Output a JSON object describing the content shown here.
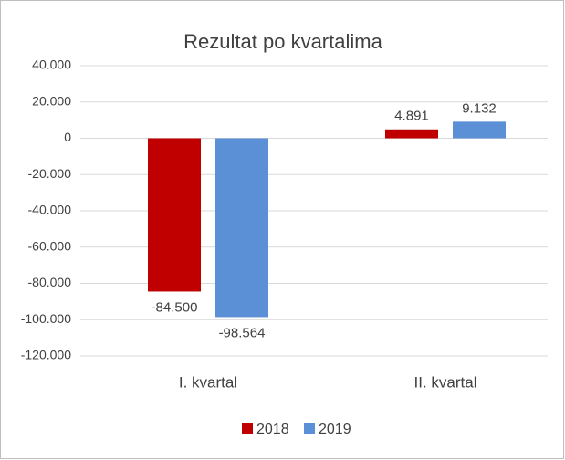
{
  "chart_data": {
    "type": "bar",
    "title": "Rezultat po kvartalima",
    "categories": [
      "I. kvartal",
      "II. kvartal"
    ],
    "series": [
      {
        "name": "2018",
        "color": "#c00000",
        "values": [
          -84500,
          4891
        ],
        "value_labels": [
          "-84.500",
          "4.891"
        ]
      },
      {
        "name": "2019",
        "color": "#5b8fd6",
        "values": [
          -98564,
          9132
        ],
        "value_labels": [
          "-98.564",
          "9.132"
        ]
      }
    ],
    "ylim": [
      -120000,
      40000
    ],
    "yticks": [
      {
        "value": -120000,
        "label": "-120.000"
      },
      {
        "value": -100000,
        "label": "-100.000"
      },
      {
        "value": -80000,
        "label": "-80.000"
      },
      {
        "value": -60000,
        "label": "-60.000"
      },
      {
        "value": -40000,
        "label": "-40.000"
      },
      {
        "value": -20000,
        "label": "-20.000"
      },
      0,
      {
        "value": 20000,
        "label": "20.000"
      },
      {
        "value": 40000,
        "label": "40.000"
      }
    ],
    "grid": true,
    "legend": "bottom"
  }
}
